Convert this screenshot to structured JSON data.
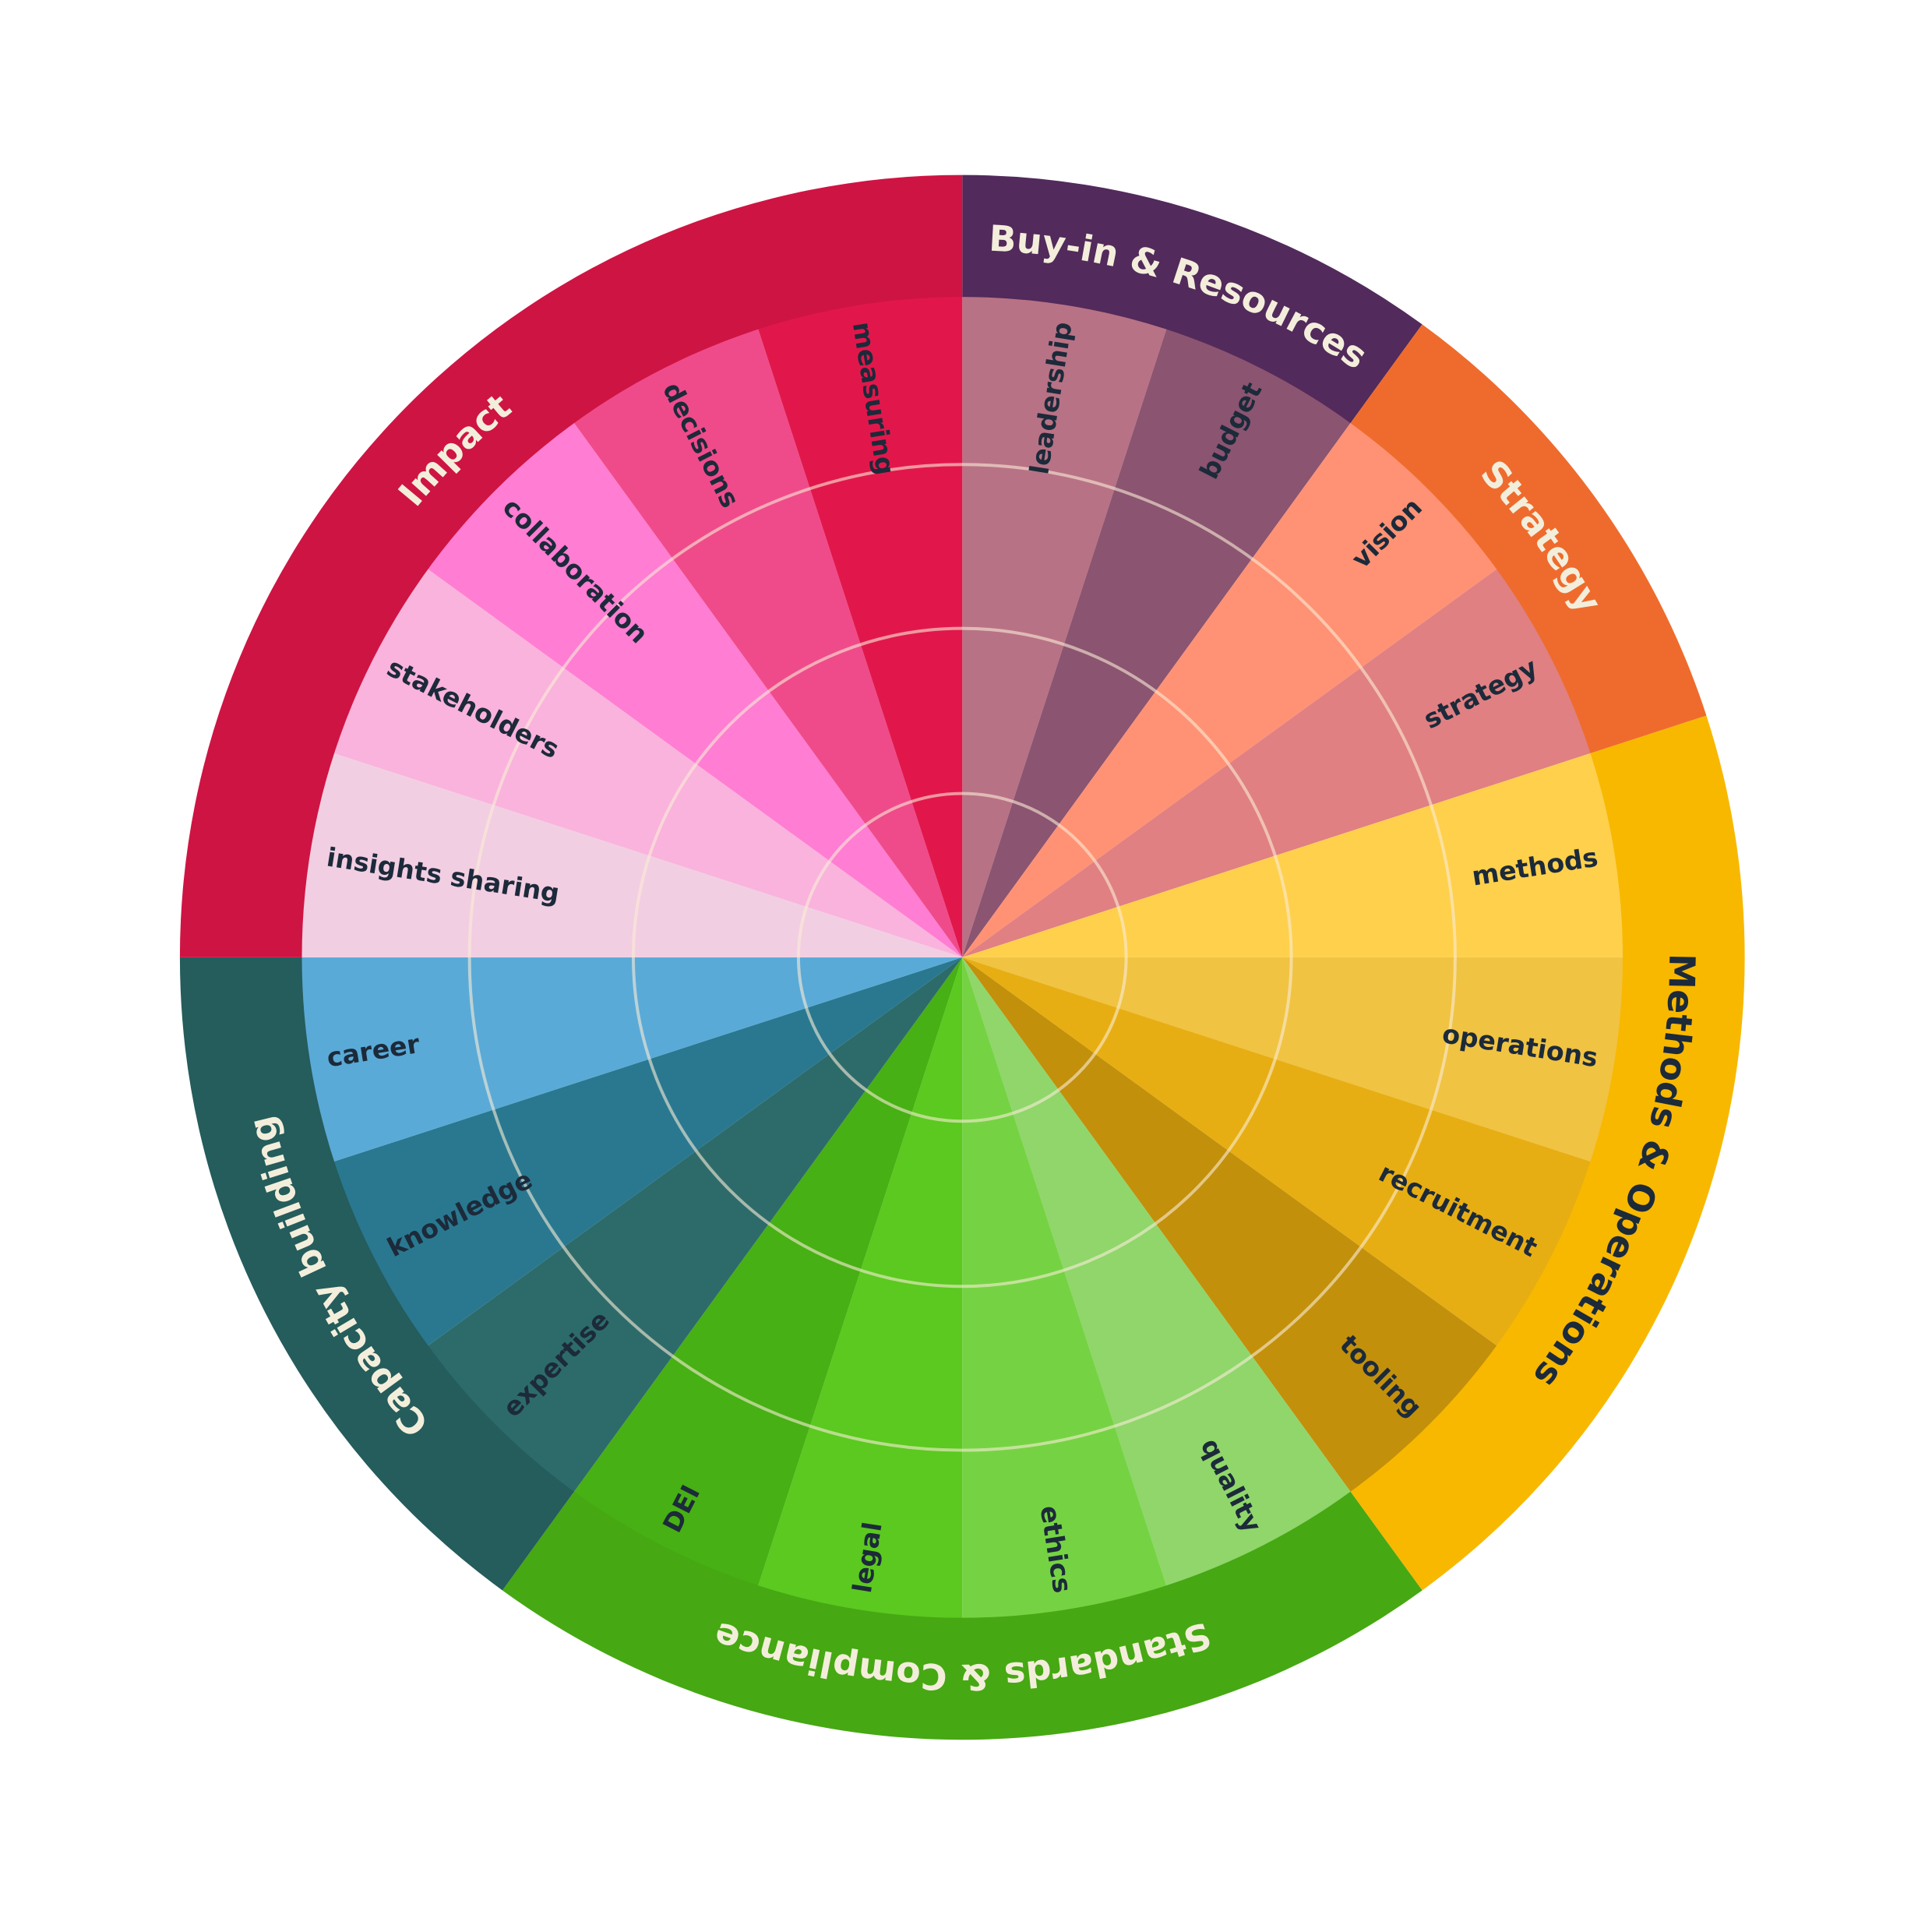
{
  "chart_data": {
    "type": "sunburst",
    "direction": "clockwise from top",
    "grid": true,
    "grid_rings": 3,
    "text_color_dark": "#1c2a3a",
    "text_color_light": "#f3eedb",
    "categories": [
      {
        "name": "Buy-in & Resources",
        "color": "#522a5b",
        "label_color": "#f3eedb",
        "items": [
          {
            "name": "leadership",
            "color": "#b87285"
          },
          {
            "name": "budget",
            "color": "#8b5470"
          }
        ]
      },
      {
        "name": "Strategy",
        "color": "#ef6b2d",
        "label_color": "#f3eedb",
        "items": [
          {
            "name": "vision",
            "color": "#ff9274"
          },
          {
            "name": "strategy",
            "color": "#e08082"
          }
        ]
      },
      {
        "name": "Methods & Operations",
        "color": "#f8b800",
        "label_color": "#1c2a3a",
        "items": [
          {
            "name": "methods",
            "color": "#ffd04c"
          },
          {
            "name": "operations",
            "color": "#f0c342"
          },
          {
            "name": "recruitment",
            "color": "#e7ae13"
          },
          {
            "name": "tooling",
            "color": "#c2900b"
          }
        ]
      },
      {
        "name": "Standards & Compliance",
        "color": "#46a813",
        "label_color": "#f3eedb",
        "items": [
          {
            "name": "quality",
            "color": "#90d66b"
          },
          {
            "name": "ethics",
            "color": "#75d343"
          },
          {
            "name": "legal",
            "color": "#5bc91f"
          },
          {
            "name": "DEI",
            "color": "#47b014"
          }
        ]
      },
      {
        "name": "Capacity building",
        "color": "#255c5c",
        "label_color": "#f3eedb",
        "items": [
          {
            "name": "expertise",
            "color": "#2d6b6a"
          },
          {
            "name": "knowledge",
            "color": "#297890"
          },
          {
            "name": "career",
            "color": "#5aaad7"
          }
        ]
      },
      {
        "name": "Impact",
        "color": "#ce1443",
        "label_color": "#f3eedb",
        "items": [
          {
            "name": "insights sharing",
            "color": "#f2cee2"
          },
          {
            "name": "stakeholders",
            "color": "#f9b3dc"
          },
          {
            "name": "collaboration",
            "color": "#ff7dd3"
          },
          {
            "name": "decisions",
            "color": "#ef4b8a"
          },
          {
            "name": "measuring",
            "color": "#e1174b"
          }
        ]
      }
    ]
  }
}
